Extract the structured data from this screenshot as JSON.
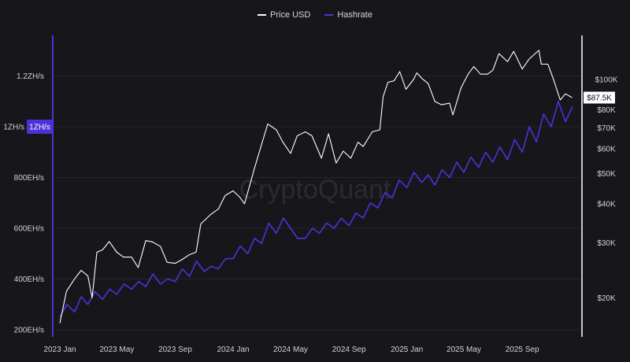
{
  "chart_data": {
    "type": "line",
    "legend_placement": "top-center",
    "grid": true,
    "watermark": "CryptoQuant",
    "x_ticks": [
      "2023 Jan",
      "2023 May",
      "2023 Sep",
      "2024 Jan",
      "2024 May",
      "2024 Sep",
      "2025 Jan",
      "2025 May",
      "2025 Sep"
    ],
    "x_tick_dates": [
      "2023-01-01",
      "2023-05-01",
      "2023-09-01",
      "2024-01-01",
      "2024-05-01",
      "2024-09-01",
      "2025-01-01",
      "2025-05-01",
      "2025-09-01"
    ],
    "y_left": {
      "ticks": [
        "200EH/s",
        "400EH/s",
        "600EH/s",
        "800EH/s",
        "1ZH/s",
        "1.2ZH/s"
      ],
      "tick_values": [
        200,
        400,
        600,
        800,
        1000,
        1200
      ],
      "unit": "EH/s",
      "current_label": "1ZH/s",
      "color": "#4b32d8"
    },
    "y_right": {
      "scale": "log",
      "ticks": [
        "$20K",
        "$30K",
        "$40K",
        "$50K",
        "$60K",
        "$70K",
        "$80K",
        "$100K"
      ],
      "tick_values": [
        20,
        30,
        40,
        50,
        60,
        70,
        80,
        100
      ],
      "unit": "K USD",
      "current_label": "$87.5K"
    },
    "series": [
      {
        "name": "Price USD",
        "color": "#ffffff",
        "axis": "right",
        "points": [
          [
            "2023-01-01",
            16.6
          ],
          [
            "2023-01-15",
            21
          ],
          [
            "2023-02-01",
            23
          ],
          [
            "2023-02-15",
            24.5
          ],
          [
            "2023-03-01",
            23.5
          ],
          [
            "2023-03-10",
            20
          ],
          [
            "2023-03-20",
            28
          ],
          [
            "2023-04-01",
            28.5
          ],
          [
            "2023-04-15",
            30.3
          ],
          [
            "2023-05-01",
            28
          ],
          [
            "2023-05-15",
            27
          ],
          [
            "2023-06-01",
            27
          ],
          [
            "2023-06-15",
            25
          ],
          [
            "2023-07-01",
            30.5
          ],
          [
            "2023-07-15",
            30.2
          ],
          [
            "2023-08-01",
            29.2
          ],
          [
            "2023-08-15",
            26
          ],
          [
            "2023-09-01",
            25.8
          ],
          [
            "2023-09-15",
            26.5
          ],
          [
            "2023-10-01",
            27.5
          ],
          [
            "2023-10-15",
            28
          ],
          [
            "2023-10-25",
            34.5
          ],
          [
            "2023-11-15",
            37
          ],
          [
            "2023-12-01",
            38.5
          ],
          [
            "2023-12-15",
            42.5
          ],
          [
            "2024-01-01",
            44
          ],
          [
            "2024-01-15",
            42
          ],
          [
            "2024-01-25",
            40
          ],
          [
            "2024-02-15",
            52
          ],
          [
            "2024-03-01",
            62
          ],
          [
            "2024-03-14",
            72
          ],
          [
            "2024-04-01",
            69
          ],
          [
            "2024-04-15",
            63
          ],
          [
            "2024-05-01",
            58
          ],
          [
            "2024-05-15",
            66
          ],
          [
            "2024-06-01",
            68
          ],
          [
            "2024-06-15",
            66
          ],
          [
            "2024-07-05",
            56
          ],
          [
            "2024-07-20",
            67
          ],
          [
            "2024-08-05",
            54
          ],
          [
            "2024-08-20",
            59
          ],
          [
            "2024-09-05",
            56
          ],
          [
            "2024-09-20",
            63
          ],
          [
            "2024-10-01",
            61
          ],
          [
            "2024-10-20",
            68
          ],
          [
            "2024-11-05",
            69
          ],
          [
            "2024-11-12",
            88
          ],
          [
            "2024-11-22",
            98
          ],
          [
            "2024-12-05",
            99
          ],
          [
            "2024-12-17",
            106
          ],
          [
            "2024-12-30",
            93
          ],
          [
            "2025-01-15",
            100
          ],
          [
            "2025-01-22",
            105
          ],
          [
            "2025-02-01",
            101
          ],
          [
            "2025-02-15",
            97
          ],
          [
            "2025-03-01",
            85
          ],
          [
            "2025-03-15",
            83
          ],
          [
            "2025-04-01",
            84
          ],
          [
            "2025-04-08",
            77
          ],
          [
            "2025-04-25",
            94
          ],
          [
            "2025-05-10",
            104
          ],
          [
            "2025-05-22",
            110
          ],
          [
            "2025-06-05",
            104
          ],
          [
            "2025-06-20",
            104
          ],
          [
            "2025-07-01",
            107
          ],
          [
            "2025-07-14",
            121
          ],
          [
            "2025-08-01",
            114
          ],
          [
            "2025-08-14",
            123
          ],
          [
            "2025-09-01",
            108
          ],
          [
            "2025-09-15",
            116
          ],
          [
            "2025-10-06",
            124
          ],
          [
            "2025-10-11",
            112
          ],
          [
            "2025-10-25",
            112
          ],
          [
            "2025-11-05",
            101
          ],
          [
            "2025-11-20",
            86
          ],
          [
            "2025-12-01",
            90
          ],
          [
            "2025-12-15",
            87.5
          ]
        ]
      },
      {
        "name": "Hashrate",
        "color": "#4b32d8",
        "axis": "left",
        "points": [
          [
            "2023-01-01",
            250
          ],
          [
            "2023-01-16",
            300
          ],
          [
            "2023-02-01",
            270
          ],
          [
            "2023-02-15",
            330
          ],
          [
            "2023-03-01",
            300
          ],
          [
            "2023-03-16",
            350
          ],
          [
            "2023-04-01",
            320
          ],
          [
            "2023-04-16",
            360
          ],
          [
            "2023-05-01",
            340
          ],
          [
            "2023-05-16",
            380
          ],
          [
            "2023-06-01",
            360
          ],
          [
            "2023-06-16",
            390
          ],
          [
            "2023-07-01",
            370
          ],
          [
            "2023-07-16",
            420
          ],
          [
            "2023-08-01",
            380
          ],
          [
            "2023-08-16",
            400
          ],
          [
            "2023-09-01",
            390
          ],
          [
            "2023-09-16",
            440
          ],
          [
            "2023-10-01",
            410
          ],
          [
            "2023-10-16",
            470
          ],
          [
            "2023-11-01",
            430
          ],
          [
            "2023-11-16",
            450
          ],
          [
            "2023-12-01",
            440
          ],
          [
            "2023-12-16",
            480
          ],
          [
            "2024-01-01",
            480
          ],
          [
            "2024-01-16",
            530
          ],
          [
            "2024-02-01",
            500
          ],
          [
            "2024-02-15",
            560
          ],
          [
            "2024-03-01",
            540
          ],
          [
            "2024-03-16",
            620
          ],
          [
            "2024-04-01",
            580
          ],
          [
            "2024-04-16",
            640
          ],
          [
            "2024-05-01",
            600
          ],
          [
            "2024-05-16",
            560
          ],
          [
            "2024-06-01",
            560
          ],
          [
            "2024-06-16",
            600
          ],
          [
            "2024-07-01",
            580
          ],
          [
            "2024-07-16",
            620
          ],
          [
            "2024-08-01",
            600
          ],
          [
            "2024-08-16",
            640
          ],
          [
            "2024-09-01",
            610
          ],
          [
            "2024-09-16",
            660
          ],
          [
            "2024-10-01",
            640
          ],
          [
            "2024-10-16",
            700
          ],
          [
            "2024-11-01",
            680
          ],
          [
            "2024-11-16",
            740
          ],
          [
            "2024-12-01",
            720
          ],
          [
            "2024-12-16",
            790
          ],
          [
            "2025-01-01",
            760
          ],
          [
            "2025-01-16",
            820
          ],
          [
            "2025-02-01",
            780
          ],
          [
            "2025-02-15",
            810
          ],
          [
            "2025-03-01",
            770
          ],
          [
            "2025-03-16",
            830
          ],
          [
            "2025-04-01",
            800
          ],
          [
            "2025-04-16",
            860
          ],
          [
            "2025-05-01",
            820
          ],
          [
            "2025-05-16",
            880
          ],
          [
            "2025-06-01",
            840
          ],
          [
            "2025-06-16",
            900
          ],
          [
            "2025-07-01",
            860
          ],
          [
            "2025-07-16",
            920
          ],
          [
            "2025-08-01",
            870
          ],
          [
            "2025-08-16",
            950
          ],
          [
            "2025-09-01",
            900
          ],
          [
            "2025-09-16",
            1000
          ],
          [
            "2025-10-01",
            940
          ],
          [
            "2025-10-16",
            1050
          ],
          [
            "2025-11-01",
            1000
          ],
          [
            "2025-11-16",
            1100
          ],
          [
            "2025-12-01",
            1020
          ],
          [
            "2025-12-16",
            1080
          ]
        ]
      }
    ]
  }
}
